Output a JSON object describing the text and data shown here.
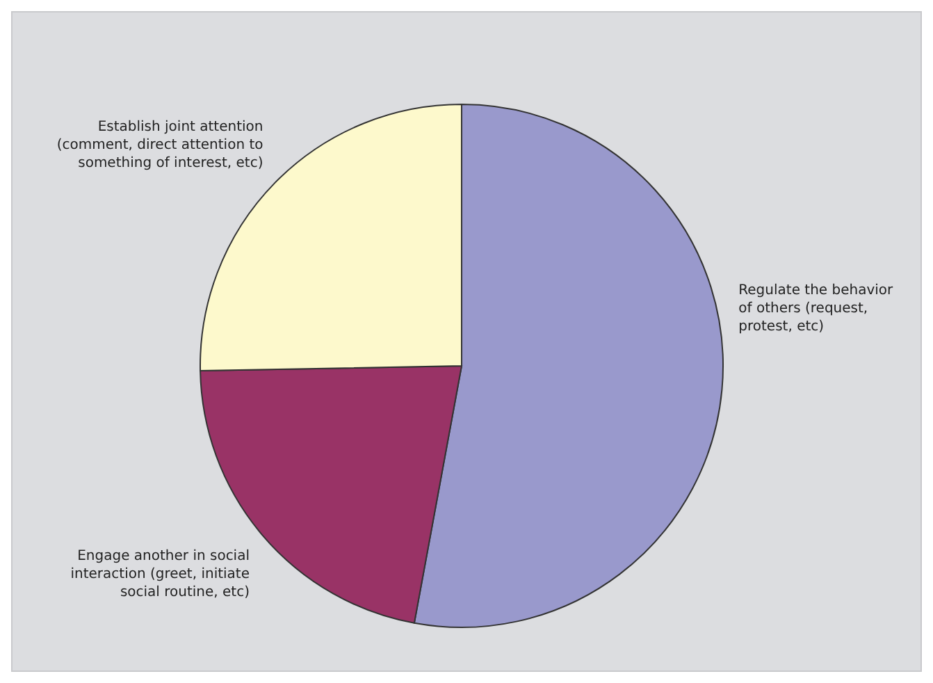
{
  "chart_data": {
    "type": "pie",
    "categories": [
      "Regulate the behavior of others (request, protest, etc)",
      "Engage another in social interaction (greet, initiate social routine, etc)",
      "Establish joint attention (comment, direct attention to something of interest, etc)"
    ],
    "values": [
      52.9,
      21.8,
      25.3
    ],
    "colors": [
      "#9999cc",
      "#993366",
      "#fdf9cc"
    ],
    "legend": false
  }
}
